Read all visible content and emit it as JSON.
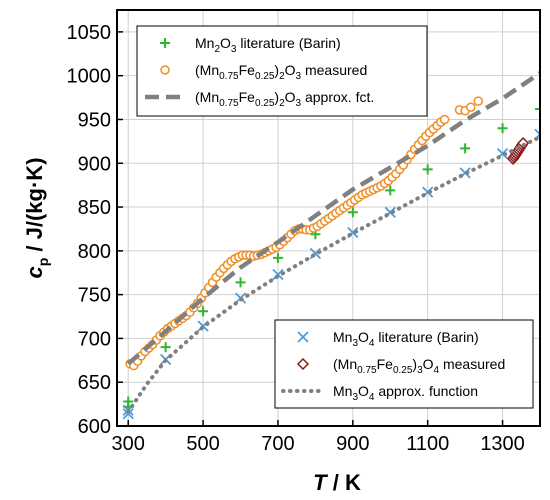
{
  "chart_data": {
    "type": "scatter",
    "xlabel": {
      "symbol": "T",
      "unit": " / K"
    },
    "ylabel": {
      "symbol": "c",
      "sub": "p",
      "unit": " / J/(kg·K)"
    },
    "xlim": [
      270,
      1400
    ],
    "ylim": [
      600,
      1075
    ],
    "xticks": [
      "300",
      "500",
      "700",
      "900",
      "1100",
      "1300"
    ],
    "xtick_values": [
      300,
      500,
      700,
      900,
      1100,
      1300
    ],
    "yticks": [
      "600",
      "650",
      "700",
      "750",
      "800",
      "850",
      "900",
      "950",
      "1000",
      "1050"
    ],
    "ytick_values": [
      600,
      650,
      700,
      750,
      800,
      850,
      900,
      950,
      1000,
      1050
    ],
    "grid": true,
    "legends": [
      {
        "placement": "top-left",
        "entries": [
          {
            "parts": [
              [
                "Mn",
                ""
              ],
              [
                "2",
                "sub"
              ],
              [
                "O",
                ""
              ],
              [
                "3",
                "sub"
              ],
              [
                " literature (Barin)",
                ""
              ]
            ],
            "marker": "plus",
            "color": "#2fb52f"
          },
          {
            "parts": [
              [
                "(Mn",
                ""
              ],
              [
                "0.75",
                "sub"
              ],
              [
                "Fe",
                ""
              ],
              [
                "0.25",
                "sub"
              ],
              [
                ")",
                ""
              ],
              [
                "2",
                "sub"
              ],
              [
                "O",
                ""
              ],
              [
                "3",
                "sub"
              ],
              [
                " measured",
                ""
              ]
            ],
            "marker": "circle",
            "color": "#f28c1e"
          },
          {
            "parts": [
              [
                "(Mn",
                ""
              ],
              [
                "0.75",
                "sub"
              ],
              [
                "Fe",
                ""
              ],
              [
                "0.25",
                "sub"
              ],
              [
                ")",
                ""
              ],
              [
                "2",
                "sub"
              ],
              [
                "O",
                ""
              ],
              [
                "3",
                "sub"
              ],
              [
                " approx. fct.",
                ""
              ]
            ],
            "marker": "dash",
            "color": "#808080"
          }
        ]
      },
      {
        "placement": "bottom-right",
        "entries": [
          {
            "parts": [
              [
                "Mn",
                ""
              ],
              [
                "3",
                "sub"
              ],
              [
                "O",
                ""
              ],
              [
                "4",
                "sub"
              ],
              [
                " literature (Barin)",
                ""
              ]
            ],
            "marker": "cross",
            "color": "#4a9ee0"
          },
          {
            "parts": [
              [
                "(Mn",
                ""
              ],
              [
                "0.75",
                "sub"
              ],
              [
                "Fe",
                ""
              ],
              [
                "0.25",
                "sub"
              ],
              [
                ")",
                ""
              ],
              [
                "3",
                "sub"
              ],
              [
                "O",
                ""
              ],
              [
                "4",
                "sub"
              ],
              [
                " measured",
                ""
              ]
            ],
            "marker": "diamond",
            "color": "#8b1a1a"
          },
          {
            "parts": [
              [
                "Mn",
                ""
              ],
              [
                "3",
                "sub"
              ],
              [
                "O",
                ""
              ],
              [
                "4",
                "sub"
              ],
              [
                " approx. function",
                ""
              ]
            ],
            "marker": "dot",
            "color": "#808080"
          }
        ]
      }
    ],
    "series": [
      {
        "marker": "plus",
        "color": "#2fb52f",
        "points": [
          [
            300,
            628
          ],
          [
            300,
            622
          ],
          [
            400,
            690
          ],
          [
            500,
            731
          ],
          [
            600,
            764
          ],
          [
            700,
            792
          ],
          [
            800,
            819
          ],
          [
            900,
            844
          ],
          [
            1000,
            869
          ],
          [
            1100,
            893
          ],
          [
            1200,
            917
          ],
          [
            1300,
            940
          ],
          [
            1400,
            962
          ]
        ]
      },
      {
        "marker": "circle",
        "color": "#f28c1e",
        "points": [
          [
            305,
            671
          ],
          [
            315,
            669
          ],
          [
            325,
            674
          ],
          [
            335,
            680
          ],
          [
            345,
            685
          ],
          [
            355,
            689
          ],
          [
            365,
            693
          ],
          [
            375,
            698
          ],
          [
            385,
            703
          ],
          [
            395,
            707
          ],
          [
            405,
            711
          ],
          [
            415,
            714
          ],
          [
            425,
            717
          ],
          [
            435,
            720
          ],
          [
            445,
            723
          ],
          [
            455,
            726
          ],
          [
            465,
            730
          ],
          [
            475,
            735
          ],
          [
            485,
            740
          ],
          [
            495,
            746
          ],
          [
            505,
            752
          ],
          [
            515,
            758
          ],
          [
            525,
            764
          ],
          [
            535,
            770
          ],
          [
            545,
            775
          ],
          [
            555,
            780
          ],
          [
            565,
            784
          ],
          [
            575,
            788
          ],
          [
            585,
            791
          ],
          [
            595,
            793
          ],
          [
            605,
            795
          ],
          [
            615,
            795
          ],
          [
            625,
            795
          ],
          [
            635,
            794
          ],
          [
            645,
            795
          ],
          [
            655,
            796
          ],
          [
            665,
            798
          ],
          [
            675,
            800
          ],
          [
            685,
            802
          ],
          [
            695,
            804
          ],
          [
            705,
            807
          ],
          [
            715,
            811
          ],
          [
            725,
            815
          ],
          [
            735,
            819
          ],
          [
            745,
            823
          ],
          [
            755,
            825
          ],
          [
            765,
            825
          ],
          [
            775,
            824
          ],
          [
            785,
            824
          ],
          [
            795,
            826
          ],
          [
            805,
            828
          ],
          [
            815,
            831
          ],
          [
            825,
            834
          ],
          [
            835,
            837
          ],
          [
            845,
            840
          ],
          [
            855,
            843
          ],
          [
            865,
            846
          ],
          [
            875,
            849
          ],
          [
            885,
            852
          ],
          [
            895,
            855
          ],
          [
            905,
            858
          ],
          [
            915,
            861
          ],
          [
            925,
            864
          ],
          [
            935,
            866
          ],
          [
            945,
            868
          ],
          [
            955,
            870
          ],
          [
            965,
            872
          ],
          [
            975,
            874
          ],
          [
            985,
            877
          ],
          [
            995,
            880
          ],
          [
            1005,
            884
          ],
          [
            1015,
            888
          ],
          [
            1025,
            893
          ],
          [
            1035,
            898
          ],
          [
            1045,
            904
          ],
          [
            1055,
            910
          ],
          [
            1065,
            916
          ],
          [
            1075,
            921
          ],
          [
            1085,
            926
          ],
          [
            1095,
            931
          ],
          [
            1105,
            935
          ],
          [
            1115,
            939
          ],
          [
            1125,
            943
          ],
          [
            1135,
            947
          ],
          [
            1145,
            950
          ],
          [
            1185,
            961
          ],
          [
            1200,
            960
          ],
          [
            1215,
            964
          ],
          [
            1235,
            971
          ]
        ]
      },
      {
        "marker": "dash",
        "color": "#808080",
        "points": [
          [
            300,
            671
          ],
          [
            400,
            708
          ],
          [
            500,
            746
          ],
          [
            600,
            781
          ],
          [
            700,
            810
          ],
          [
            800,
            840
          ],
          [
            900,
            870
          ],
          [
            1000,
            895
          ],
          [
            1100,
            920
          ],
          [
            1200,
            949
          ],
          [
            1300,
            974
          ],
          [
            1400,
            1003
          ]
        ]
      },
      {
        "marker": "cross",
        "color": "#4a9ee0",
        "points": [
          [
            300,
            618
          ],
          [
            300,
            614
          ],
          [
            400,
            676
          ],
          [
            500,
            714
          ],
          [
            600,
            746
          ],
          [
            700,
            773
          ],
          [
            800,
            797
          ],
          [
            900,
            821
          ],
          [
            1000,
            844
          ],
          [
            1100,
            867
          ],
          [
            1200,
            889
          ],
          [
            1300,
            911
          ],
          [
            1400,
            933
          ]
        ]
      },
      {
        "marker": "diamond",
        "color": "#8b1a1a",
        "points": [
          [
            1328,
            905
          ],
          [
            1331,
            907
          ],
          [
            1334,
            909
          ],
          [
            1337,
            911
          ],
          [
            1340,
            913
          ],
          [
            1343,
            915
          ],
          [
            1346,
            917
          ],
          [
            1349,
            919
          ],
          [
            1352,
            921
          ],
          [
            1355,
            923
          ]
        ]
      },
      {
        "marker": "dot",
        "color": "#808080",
        "points": [
          [
            300,
            616
          ],
          [
            350,
            648
          ],
          [
            400,
            675
          ],
          [
            500,
            713
          ],
          [
            600,
            744
          ],
          [
            700,
            771
          ],
          [
            800,
            796
          ],
          [
            900,
            820
          ],
          [
            1000,
            843
          ],
          [
            1100,
            866
          ],
          [
            1200,
            888
          ],
          [
            1300,
            909
          ],
          [
            1400,
            930
          ]
        ]
      }
    ]
  }
}
